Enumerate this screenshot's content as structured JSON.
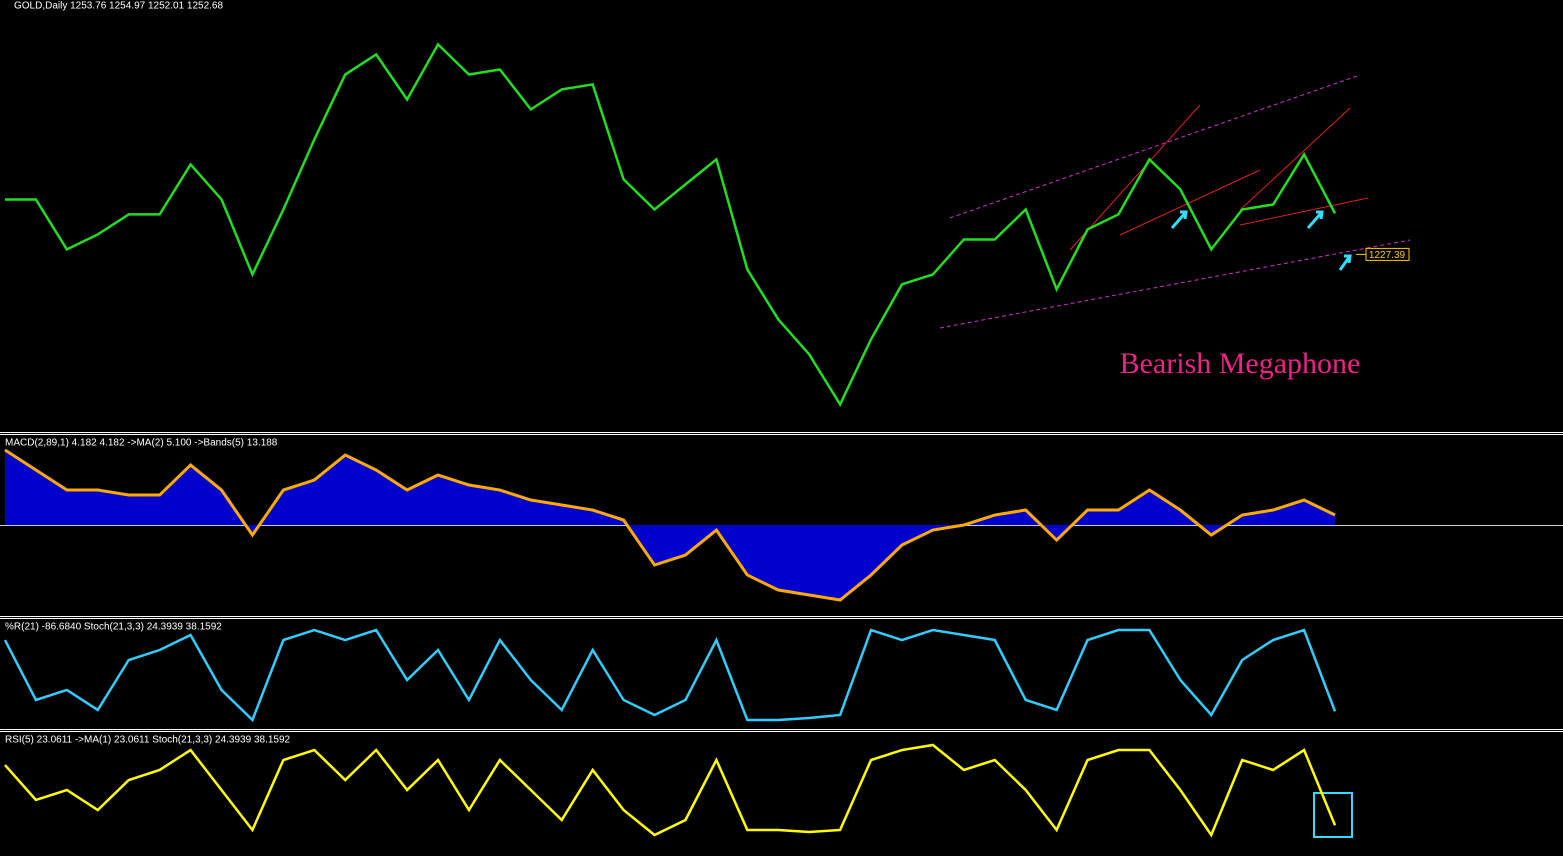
{
  "chart_data": [
    {
      "type": "line",
      "title": "GOLD,Daily  1253.76 1254.97 1252.01 1252.68",
      "color": "#22dd22",
      "annotation": "Bearish Megaphone",
      "price_label": {
        "value": 1227.39,
        "label": "1227.39"
      },
      "ylim": [
        1119,
        1377
      ],
      "categories": [
        null,
        null,
        null,
        null,
        null,
        null,
        null,
        null,
        null,
        null,
        null,
        null,
        null,
        null,
        null,
        null,
        null,
        null,
        null,
        null,
        null,
        null,
        null,
        null,
        null,
        null,
        null,
        null,
        null,
        null,
        null,
        null,
        null,
        null,
        null,
        null,
        null,
        null,
        null,
        null,
        null,
        null,
        null,
        null
      ],
      "values": [
        1261.3,
        1261.3,
        1230.5,
        1239.7,
        1252.1,
        1252.1,
        1282.9,
        1261.3,
        1215.0,
        1255.1,
        1298.3,
        1338.4,
        1350.8,
        1323.0,
        1357.0,
        1338.4,
        1341.5,
        1316.9,
        1329.2,
        1332.3,
        1273.7,
        1255.1,
        1270.6,
        1286.0,
        1218.1,
        1187.3,
        1165.7,
        1134.8,
        1175.0,
        1208.9,
        1215.0,
        1236.6,
        1236.6,
        1255.1,
        1205.8,
        1242.8,
        1252.1,
        1286.0,
        1267.5,
        1230.5,
        1255.1,
        1258.2,
        1289.1,
        1252.7
      ]
    },
    {
      "type": "area",
      "title": "MACD(2,89,1) 4.182 4.182  ->MA(2) 5.100  ->Bands(5) 13.188",
      "color": "#0000cc",
      "line_color": "#ffaa00",
      "ylim": [
        -37.8,
        37.4
      ],
      "categories": [
        null,
        null,
        null,
        null,
        null,
        null,
        null,
        null,
        null,
        null,
        null,
        null,
        null,
        null,
        null,
        null,
        null,
        null,
        null,
        null,
        null,
        null,
        null,
        null,
        null,
        null,
        null,
        null,
        null,
        null,
        null,
        null,
        null,
        null,
        null,
        null,
        null,
        null,
        null,
        null,
        null,
        null,
        null,
        null
      ],
      "values": [
        31.5,
        23.1,
        14.7,
        14.7,
        12.6,
        12.6,
        25.2,
        14.7,
        -4.2,
        14.7,
        18.9,
        29.4,
        23.1,
        14.7,
        21.0,
        16.8,
        14.7,
        10.5,
        8.4,
        6.3,
        2.1,
        -16.8,
        -12.6,
        -2.1,
        -21.0,
        -27.3,
        -29.4,
        -31.5,
        -21.0,
        -8.4,
        -2.1,
        0,
        4.2,
        6.3,
        -6.3,
        6.3,
        6.3,
        14.7,
        6.3,
        -4.2,
        4.2,
        6.3,
        10.5,
        4.2
      ]
    },
    {
      "type": "line",
      "title": "%R(21) -86.6840  Stoch(21,3,3) 24.3939 38.1592",
      "color": "#33ccff",
      "ylim": [
        -100,
        0
      ],
      "categories": [
        null,
        null,
        null,
        null,
        null,
        null,
        null,
        null,
        null,
        null,
        null,
        null,
        null,
        null,
        null,
        null,
        null,
        null,
        null,
        null,
        null,
        null,
        null,
        null,
        null,
        null,
        null,
        null,
        null,
        null,
        null,
        null,
        null,
        null,
        null,
        null,
        null,
        null,
        null,
        null,
        null,
        null,
        null,
        null
      ],
      "values": [
        -17.5,
        -75.7,
        -66.0,
        -85.4,
        -36.9,
        -27.2,
        -12.6,
        -66.0,
        -95.1,
        -17.5,
        -7.8,
        -17.5,
        -7.8,
        -56.3,
        -27.2,
        -75.7,
        -17.5,
        -56.3,
        -85.4,
        -27.2,
        -75.7,
        -90.3,
        -75.7,
        -17.5,
        -95.1,
        -95.1,
        -93.2,
        -90.3,
        -7.8,
        -17.5,
        -7.8,
        -12.6,
        -17.5,
        -75.7,
        -85.4,
        -17.5,
        -7.8,
        -7.8,
        -56.3,
        -90.3,
        -36.9,
        -17.5,
        -7.8,
        -86.7
      ]
    },
    {
      "type": "line",
      "title": "RSI(5) 23.0611  ->MA(1) 23.0611  Stoch(21,3,3) 24.3939 38.1592",
      "color": "#ffff00",
      "ylim": [
        0,
        100
      ],
      "categories": [
        null,
        null,
        null,
        null,
        null,
        null,
        null,
        null,
        null,
        null,
        null,
        null,
        null,
        null,
        null,
        null,
        null,
        null,
        null,
        null,
        null,
        null,
        null,
        null,
        null,
        null,
        null,
        null,
        null,
        null,
        null,
        null,
        null,
        null,
        null,
        null,
        null,
        null,
        null,
        null,
        null,
        null,
        null,
        null
      ],
      "values": [
        73.3,
        44.2,
        52.5,
        35.8,
        60.8,
        69.2,
        85.8,
        52.5,
        19.2,
        77.5,
        85.8,
        60.8,
        85.8,
        52.5,
        77.5,
        35.8,
        77.5,
        52.5,
        27.5,
        69.2,
        35.8,
        15.0,
        27.5,
        77.5,
        19.2,
        19.2,
        17.5,
        19.2,
        77.5,
        85.8,
        90.0,
        69.2,
        77.5,
        52.5,
        19.2,
        77.5,
        85.8,
        85.8,
        52.5,
        15.0,
        77.5,
        69.2,
        85.8,
        23.1
      ]
    }
  ]
}
